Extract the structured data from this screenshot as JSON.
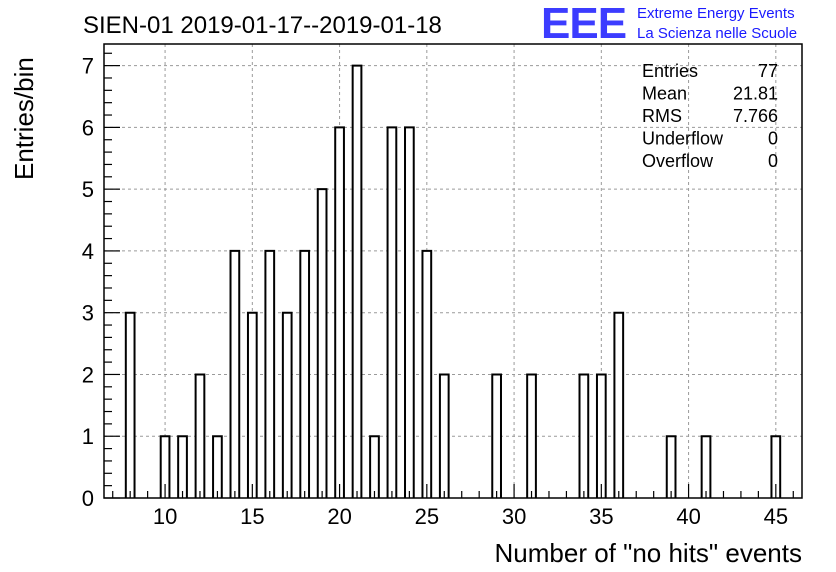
{
  "chart_data": {
    "type": "bar",
    "title": "SIEN-01 2019-01-17--2019-01-18",
    "xlabel": "Number of \"no hits\" events",
    "ylabel": "Entries/bin",
    "xlim": [
      6.5,
      46.5
    ],
    "ylim": [
      0,
      7.35
    ],
    "bin_width": 0.5,
    "x_ticks": [
      10,
      15,
      20,
      25,
      30,
      35,
      40,
      45
    ],
    "y_ticks": [
      0,
      1,
      2,
      3,
      4,
      5,
      6,
      7
    ],
    "grid": true,
    "bins": [
      {
        "x": 8,
        "value": 3
      },
      {
        "x": 10,
        "value": 1
      },
      {
        "x": 11,
        "value": 1
      },
      {
        "x": 12,
        "value": 2
      },
      {
        "x": 13,
        "value": 1
      },
      {
        "x": 14,
        "value": 4
      },
      {
        "x": 15,
        "value": 3
      },
      {
        "x": 16,
        "value": 4
      },
      {
        "x": 17,
        "value": 3
      },
      {
        "x": 18,
        "value": 4
      },
      {
        "x": 19,
        "value": 5
      },
      {
        "x": 20,
        "value": 6
      },
      {
        "x": 21,
        "value": 7
      },
      {
        "x": 22,
        "value": 1
      },
      {
        "x": 23,
        "value": 6
      },
      {
        "x": 24,
        "value": 6
      },
      {
        "x": 25,
        "value": 4
      },
      {
        "x": 26,
        "value": 2
      },
      {
        "x": 29,
        "value": 2
      },
      {
        "x": 31,
        "value": 2
      },
      {
        "x": 34,
        "value": 2
      },
      {
        "x": 35,
        "value": 2
      },
      {
        "x": 36,
        "value": 3
      },
      {
        "x": 39,
        "value": 1
      },
      {
        "x": 41,
        "value": 1
      },
      {
        "x": 45,
        "value": 1
      }
    ],
    "stats": [
      {
        "label": "Entries",
        "value": "77"
      },
      {
        "label": "Mean",
        "value": "21.81"
      },
      {
        "label": "RMS",
        "value": "7.766"
      },
      {
        "label": "Underflow",
        "value": "0"
      },
      {
        "label": "Overflow",
        "value": "0"
      }
    ]
  },
  "logo": {
    "mark": "EEE",
    "line1": "Extreme Energy Events",
    "line2": "La Scienza nelle Scuole",
    "color": "#1a1aff"
  }
}
